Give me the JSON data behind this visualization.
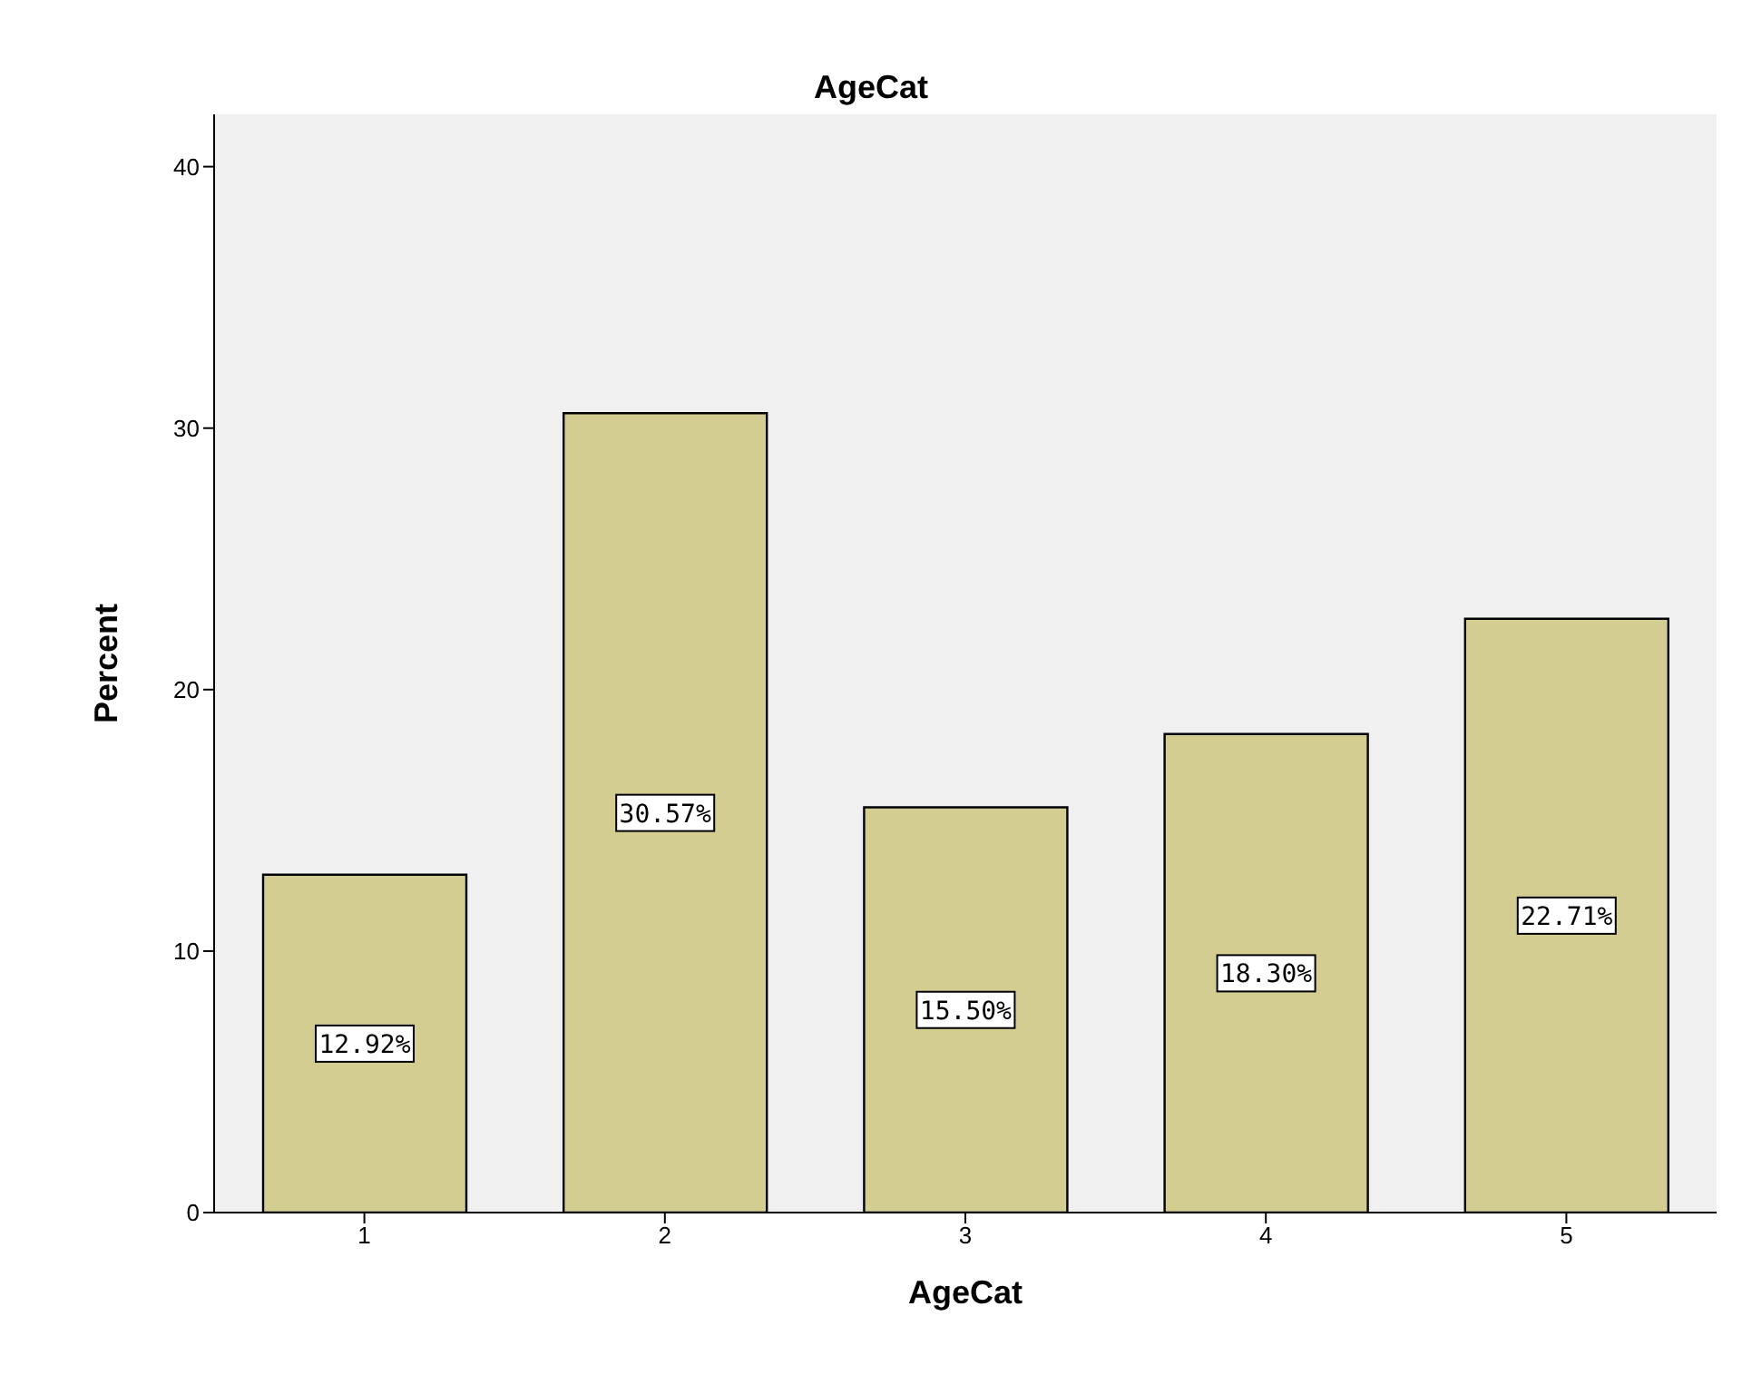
{
  "chart_data": {
    "type": "bar",
    "title": "AgeCat",
    "xlabel": "AgeCat",
    "ylabel": "Percent",
    "categories": [
      "1",
      "2",
      "3",
      "4",
      "5"
    ],
    "values": [
      12.92,
      30.57,
      15.5,
      18.3,
      22.71
    ],
    "value_labels": [
      "12.92%",
      "30.57%",
      "15.50%",
      "18.30%",
      "22.71%"
    ],
    "color": "#d3cd92",
    "ylim": [
      0,
      42
    ],
    "yticks": [
      0,
      10,
      20,
      30,
      40
    ],
    "grid": false,
    "legend": false
  }
}
